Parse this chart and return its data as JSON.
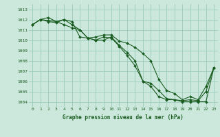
{
  "title": "Graphe pression niveau de la mer (hPa)",
  "bg_color": "#cce8dd",
  "grid_color": "#99ccbb",
  "line_color": "#1a5c20",
  "xlim": [
    -0.5,
    23.5
  ],
  "ylim": [
    1003.5,
    1013.5
  ],
  "yticks": [
    1004,
    1005,
    1006,
    1007,
    1008,
    1009,
    1010,
    1011,
    1012,
    1013
  ],
  "xticks": [
    0,
    1,
    2,
    3,
    4,
    5,
    6,
    7,
    8,
    9,
    10,
    11,
    12,
    13,
    14,
    15,
    16,
    17,
    18,
    19,
    20,
    21,
    22,
    23
  ],
  "series": [
    [
      1011.5,
      1012.0,
      1011.8,
      1011.7,
      1012.0,
      1011.5,
      1011.0,
      1010.2,
      1010.0,
      1010.3,
      1010.2,
      1009.4,
      1008.5,
      1007.5,
      1006.0,
      1005.8,
      1005.1,
      1004.3,
      1004.2,
      1004.1,
      1004.2,
      1004.1,
      1005.0,
      1007.3
    ],
    [
      1011.5,
      1012.0,
      1012.2,
      1011.8,
      1011.5,
      1011.2,
      1011.0,
      1010.2,
      1010.0,
      1010.0,
      1010.3,
      1009.5,
      1008.8,
      1008.0,
      1006.0,
      1005.5,
      1004.5,
      1004.2,
      1004.2,
      1004.0,
      1004.0,
      1004.0,
      1004.0,
      1007.3
    ],
    [
      1011.5,
      1012.0,
      1011.9,
      1011.8,
      1012.0,
      1011.8,
      1010.3,
      1010.2,
      1010.3,
      1010.5,
      1010.5,
      1009.9,
      1009.7,
      1009.3,
      1008.7,
      1008.0,
      1006.2,
      1005.1,
      1004.8,
      1004.2,
      1004.5,
      1004.2,
      1005.5,
      1007.3
    ]
  ],
  "title_fontsize": 5.5,
  "tick_fontsize": 4.5,
  "marker_size": 2.0,
  "linewidth": 0.8
}
